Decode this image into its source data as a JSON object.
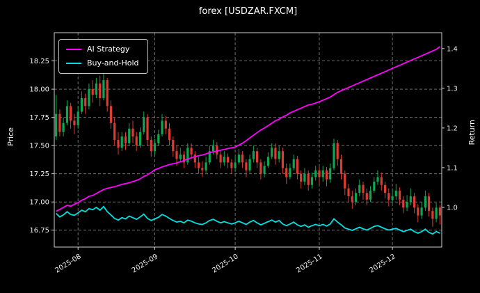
{
  "title": "forex [USDZAR.FXCM]",
  "axes": {
    "left_label": "Price",
    "right_label": "Return"
  },
  "legend": {
    "items": [
      {
        "label": "AI Strategy",
        "color": "#ff00ff"
      },
      {
        "label": "Buy-and-Hold",
        "color": "#00e0e0"
      }
    ],
    "position": "upper-left"
  },
  "chart_data": {
    "type": "candlestick",
    "title": "forex [USDZAR.FXCM]",
    "xlabel": "",
    "ylabel_left": "Price",
    "ylabel_right": "Return",
    "grid": true,
    "background": "#000000",
    "price_ylim": [
      16.6,
      18.5
    ],
    "return_ylim": [
      0.9,
      1.44
    ],
    "price_ticks": [
      {
        "v": 16.75,
        "label": "16.75"
      },
      {
        "v": 17.0,
        "label": "17.00"
      },
      {
        "v": 17.25,
        "label": "17.25"
      },
      {
        "v": 17.5,
        "label": "17.50"
      },
      {
        "v": 17.75,
        "label": "17.75"
      },
      {
        "v": 18.0,
        "label": "18.00"
      },
      {
        "v": 18.25,
        "label": "18.25"
      }
    ],
    "return_ticks": [
      {
        "v": 1.0,
        "label": "1.0"
      },
      {
        "v": 1.1,
        "label": "1.1"
      },
      {
        "v": 1.2,
        "label": "1.2"
      },
      {
        "v": 1.3,
        "label": "1.3"
      },
      {
        "v": 1.4,
        "label": "1.4"
      }
    ],
    "x_ticks": [
      {
        "label": "2025-08",
        "index": 6
      },
      {
        "label": "2025-09",
        "index": 27
      },
      {
        "label": "2025-10",
        "index": 49
      },
      {
        "label": "2025-11",
        "index": 72
      },
      {
        "label": "2025-12",
        "index": 92
      }
    ],
    "colors": {
      "up": "#0ca750",
      "down": "#dc3c32",
      "grid": "#6f6f6f",
      "text": "#ffffff"
    },
    "candles": [
      [
        17.58,
        17.95,
        17.55,
        17.78
      ],
      [
        17.78,
        17.82,
        17.58,
        17.62
      ],
      [
        17.62,
        17.75,
        17.58,
        17.7
      ],
      [
        17.7,
        17.9,
        17.68,
        17.85
      ],
      [
        17.85,
        17.88,
        17.65,
        17.72
      ],
      [
        17.72,
        17.78,
        17.6,
        17.68
      ],
      [
        17.68,
        17.85,
        17.65,
        17.8
      ],
      [
        17.8,
        17.98,
        17.78,
        17.92
      ],
      [
        17.92,
        17.96,
        17.78,
        17.85
      ],
      [
        17.85,
        18.05,
        17.82,
        18.0
      ],
      [
        18.0,
        18.08,
        17.88,
        17.95
      ],
      [
        17.95,
        18.1,
        17.92,
        18.05
      ],
      [
        18.05,
        18.12,
        17.85,
        17.92
      ],
      [
        17.92,
        18.15,
        17.9,
        18.08
      ],
      [
        18.08,
        18.1,
        17.8,
        17.85
      ],
      [
        17.85,
        17.9,
        17.65,
        17.7
      ],
      [
        17.7,
        17.75,
        17.5,
        17.55
      ],
      [
        17.55,
        17.62,
        17.42,
        17.48
      ],
      [
        17.48,
        17.62,
        17.45,
        17.58
      ],
      [
        17.58,
        17.62,
        17.46,
        17.52
      ],
      [
        17.52,
        17.7,
        17.5,
        17.65
      ],
      [
        17.65,
        17.72,
        17.52,
        17.58
      ],
      [
        17.58,
        17.62,
        17.45,
        17.5
      ],
      [
        17.5,
        17.66,
        17.48,
        17.62
      ],
      [
        17.62,
        17.8,
        17.6,
        17.75
      ],
      [
        17.75,
        17.78,
        17.5,
        17.55
      ],
      [
        17.55,
        17.58,
        17.4,
        17.45
      ],
      [
        17.45,
        17.56,
        17.42,
        17.52
      ],
      [
        17.52,
        17.64,
        17.5,
        17.6
      ],
      [
        17.6,
        17.78,
        17.58,
        17.72
      ],
      [
        17.72,
        17.76,
        17.6,
        17.65
      ],
      [
        17.65,
        17.7,
        17.5,
        17.55
      ],
      [
        17.55,
        17.58,
        17.4,
        17.45
      ],
      [
        17.45,
        17.5,
        17.32,
        17.38
      ],
      [
        17.38,
        17.48,
        17.35,
        17.42
      ],
      [
        17.42,
        17.45,
        17.3,
        17.35
      ],
      [
        17.35,
        17.52,
        17.33,
        17.48
      ],
      [
        17.48,
        17.52,
        17.38,
        17.42
      ],
      [
        17.42,
        17.45,
        17.3,
        17.35
      ],
      [
        17.35,
        17.4,
        17.25,
        17.3
      ],
      [
        17.3,
        17.36,
        17.22,
        17.28
      ],
      [
        17.28,
        17.4,
        17.26,
        17.35
      ],
      [
        17.35,
        17.5,
        17.33,
        17.45
      ],
      [
        17.45,
        17.55,
        17.42,
        17.5
      ],
      [
        17.5,
        17.53,
        17.38,
        17.42
      ],
      [
        17.42,
        17.45,
        17.3,
        17.35
      ],
      [
        17.35,
        17.45,
        17.32,
        17.4
      ],
      [
        17.4,
        17.43,
        17.3,
        17.35
      ],
      [
        17.35,
        17.38,
        17.25,
        17.3
      ],
      [
        17.3,
        17.4,
        17.27,
        17.35
      ],
      [
        17.35,
        17.47,
        17.33,
        17.42
      ],
      [
        17.42,
        17.45,
        17.3,
        17.35
      ],
      [
        17.35,
        17.38,
        17.22,
        17.28
      ],
      [
        17.28,
        17.42,
        17.26,
        17.38
      ],
      [
        17.38,
        17.5,
        17.35,
        17.45
      ],
      [
        17.45,
        17.48,
        17.3,
        17.35
      ],
      [
        17.35,
        17.38,
        17.2,
        17.25
      ],
      [
        17.25,
        17.36,
        17.22,
        17.32
      ],
      [
        17.32,
        17.44,
        17.3,
        17.4
      ],
      [
        17.4,
        17.52,
        17.38,
        17.48
      ],
      [
        17.48,
        17.52,
        17.33,
        17.38
      ],
      [
        17.38,
        17.5,
        17.35,
        17.45
      ],
      [
        17.45,
        17.48,
        17.25,
        17.3
      ],
      [
        17.3,
        17.34,
        17.16,
        17.22
      ],
      [
        17.22,
        17.34,
        17.2,
        17.3
      ],
      [
        17.3,
        17.42,
        17.28,
        17.38
      ],
      [
        17.38,
        17.41,
        17.2,
        17.25
      ],
      [
        17.25,
        17.28,
        17.12,
        17.18
      ],
      [
        17.18,
        17.3,
        17.15,
        17.25
      ],
      [
        17.25,
        17.28,
        17.1,
        17.15
      ],
      [
        17.15,
        17.26,
        17.12,
        17.22
      ],
      [
        17.22,
        17.32,
        17.19,
        17.28
      ],
      [
        17.28,
        17.31,
        17.16,
        17.22
      ],
      [
        17.22,
        17.32,
        17.18,
        17.28
      ],
      [
        17.28,
        17.31,
        17.14,
        17.2
      ],
      [
        17.2,
        17.34,
        17.17,
        17.3
      ],
      [
        17.3,
        17.56,
        17.28,
        17.52
      ],
      [
        17.52,
        17.55,
        17.32,
        17.38
      ],
      [
        17.38,
        17.42,
        17.2,
        17.25
      ],
      [
        17.25,
        17.28,
        17.06,
        17.12
      ],
      [
        17.12,
        17.16,
        17.0,
        17.05
      ],
      [
        17.05,
        17.1,
        16.94,
        17.0
      ],
      [
        17.0,
        17.12,
        16.97,
        17.08
      ],
      [
        17.08,
        17.2,
        17.05,
        17.15
      ],
      [
        17.15,
        17.18,
        17.02,
        17.08
      ],
      [
        17.08,
        17.12,
        16.97,
        17.02
      ],
      [
        17.02,
        17.14,
        17.0,
        17.1
      ],
      [
        17.1,
        17.22,
        17.08,
        17.18
      ],
      [
        17.18,
        17.28,
        17.15,
        17.22
      ],
      [
        17.22,
        17.26,
        17.1,
        17.15
      ],
      [
        17.15,
        17.18,
        17.03,
        17.08
      ],
      [
        17.08,
        17.12,
        16.96,
        17.02
      ],
      [
        17.02,
        17.12,
        16.99,
        17.05
      ],
      [
        17.05,
        17.16,
        17.02,
        17.1
      ],
      [
        17.1,
        17.13,
        16.97,
        17.02
      ],
      [
        17.02,
        17.05,
        16.9,
        16.95
      ],
      [
        16.95,
        17.06,
        16.92,
        17.0
      ],
      [
        17.0,
        17.12,
        16.97,
        17.05
      ],
      [
        17.05,
        17.08,
        16.9,
        16.95
      ],
      [
        16.95,
        16.98,
        16.82,
        16.88
      ],
      [
        16.88,
        17.0,
        16.85,
        16.95
      ],
      [
        16.95,
        17.1,
        16.92,
        17.05
      ],
      [
        17.05,
        17.08,
        16.87,
        16.92
      ],
      [
        16.92,
        16.95,
        16.78,
        16.85
      ],
      [
        16.85,
        16.99,
        16.82,
        16.95
      ],
      [
        16.95,
        16.97,
        16.8,
        16.88
      ]
    ],
    "series": [
      {
        "name": "AI Strategy",
        "axis": "return",
        "color": "#ff00ff",
        "values": [
          0.99,
          0.995,
          1.0,
          1.005,
          1.003,
          1.008,
          1.012,
          1.018,
          1.022,
          1.028,
          1.03,
          1.035,
          1.04,
          1.045,
          1.048,
          1.05,
          1.052,
          1.055,
          1.058,
          1.06,
          1.062,
          1.065,
          1.068,
          1.072,
          1.078,
          1.082,
          1.088,
          1.095,
          1.098,
          1.102,
          1.105,
          1.108,
          1.11,
          1.112,
          1.115,
          1.118,
          1.122,
          1.125,
          1.128,
          1.13,
          1.132,
          1.135,
          1.138,
          1.14,
          1.142,
          1.144,
          1.146,
          1.148,
          1.15,
          1.152,
          1.157,
          1.162,
          1.168,
          1.175,
          1.182,
          1.188,
          1.195,
          1.2,
          1.206,
          1.212,
          1.218,
          1.222,
          1.228,
          1.232,
          1.238,
          1.242,
          1.246,
          1.25,
          1.254,
          1.258,
          1.26,
          1.263,
          1.266,
          1.27,
          1.274,
          1.278,
          1.284,
          1.29,
          1.294,
          1.298,
          1.302,
          1.306,
          1.31,
          1.314,
          1.318,
          1.322,
          1.326,
          1.33,
          1.334,
          1.338,
          1.342,
          1.346,
          1.35,
          1.354,
          1.358,
          1.362,
          1.366,
          1.37,
          1.374,
          1.378,
          1.382,
          1.386,
          1.39,
          1.394,
          1.398,
          1.405
        ]
      },
      {
        "name": "Buy-and-Hold",
        "axis": "return",
        "color": "#00e0e0",
        "values": [
          0.985,
          0.976,
          0.981,
          0.989,
          0.982,
          0.98,
          0.986,
          0.993,
          0.989,
          0.997,
          0.994,
          1.0,
          0.993,
          1.002,
          0.989,
          0.981,
          0.972,
          0.968,
          0.974,
          0.971,
          0.978,
          0.974,
          0.97,
          0.976,
          0.983,
          0.972,
          0.967,
          0.971,
          0.975,
          0.982,
          0.978,
          0.972,
          0.967,
          0.963,
          0.965,
          0.961,
          0.968,
          0.965,
          0.961,
          0.958,
          0.957,
          0.961,
          0.967,
          0.97,
          0.965,
          0.961,
          0.964,
          0.961,
          0.958,
          0.961,
          0.965,
          0.961,
          0.957,
          0.963,
          0.967,
          0.961,
          0.956,
          0.96,
          0.964,
          0.968,
          0.963,
          0.967,
          0.958,
          0.954,
          0.958,
          0.963,
          0.956,
          0.952,
          0.956,
          0.95,
          0.954,
          0.957,
          0.954,
          0.957,
          0.953,
          0.958,
          0.971,
          0.963,
          0.956,
          0.948,
          0.945,
          0.942,
          0.946,
          0.95,
          0.946,
          0.943,
          0.947,
          0.952,
          0.954,
          0.95,
          0.946,
          0.943,
          0.945,
          0.947,
          0.943,
          0.939,
          0.942,
          0.945,
          0.939,
          0.935,
          0.939,
          0.945,
          0.937,
          0.933,
          0.939,
          0.935
        ]
      }
    ]
  }
}
